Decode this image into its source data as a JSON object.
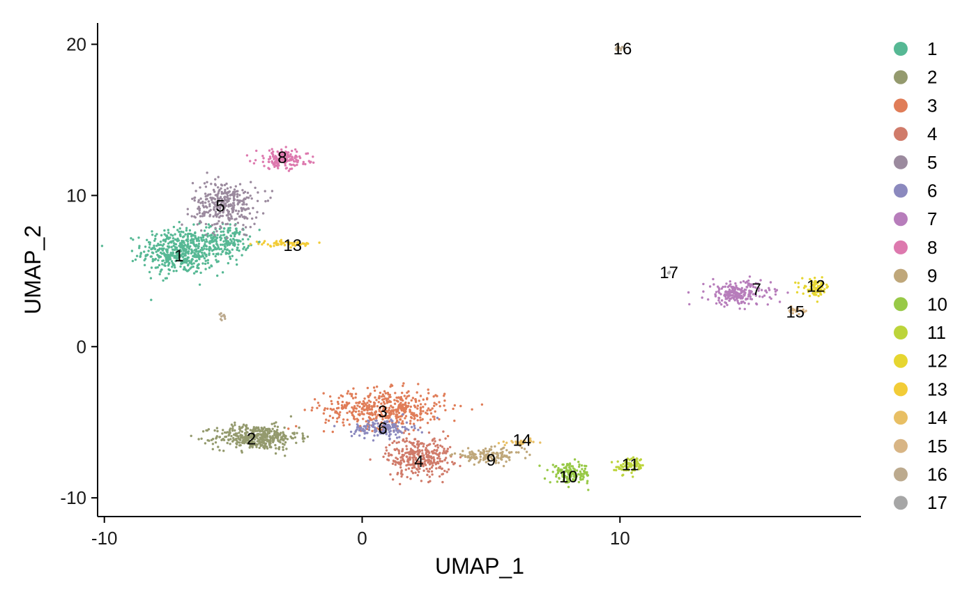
{
  "chart_data": {
    "type": "scatter",
    "title": "",
    "xlabel": "UMAP_1",
    "ylabel": "UMAP_2",
    "xlim": [
      -10.1,
      19.7
    ],
    "ylim": [
      -11.1,
      21.5
    ],
    "x_ticks": [
      -10,
      0,
      10
    ],
    "y_ticks": [
      -10,
      0,
      10,
      20
    ],
    "x_tick_labels": [
      "-10",
      "0",
      "10"
    ],
    "y_tick_labels": [
      "-10",
      "0",
      "10",
      "20"
    ],
    "grid": false,
    "legend_position": "right",
    "legend_entries": [
      "1",
      "2",
      "3",
      "4",
      "5",
      "6",
      "7",
      "8",
      "9",
      "10",
      "11",
      "12",
      "13",
      "14",
      "15",
      "16",
      "17"
    ],
    "series": [
      {
        "name": "1",
        "color": "#56B894",
        "label_pos": [
          -7.1,
          6.0
        ],
        "regions": [
          {
            "cx": -7.0,
            "cy": 6.3,
            "rx": 1.7,
            "ry": 1.7,
            "n": 500
          },
          {
            "cx": -5.2,
            "cy": 7.0,
            "rx": 0.9,
            "ry": 1.2,
            "n": 150
          }
        ]
      },
      {
        "name": "2",
        "color": "#949A6E",
        "label_pos": [
          -4.3,
          -6.1
        ],
        "regions": [
          {
            "cx": -4.1,
            "cy": -6.0,
            "rx": 1.8,
            "ry": 0.9,
            "n": 420
          }
        ]
      },
      {
        "name": "3",
        "color": "#E07D58",
        "label_pos": [
          0.8,
          -4.3
        ],
        "regions": [
          {
            "cx": 0.9,
            "cy": -4.1,
            "rx": 2.6,
            "ry": 1.4,
            "n": 480
          }
        ]
      },
      {
        "name": "4",
        "color": "#D07B6A",
        "label_pos": [
          2.2,
          -7.6
        ],
        "regions": [
          {
            "cx": 2.2,
            "cy": -7.3,
            "rx": 1.4,
            "ry": 1.5,
            "n": 320
          }
        ]
      },
      {
        "name": "5",
        "color": "#9B8A9E",
        "label_pos": [
          -5.5,
          9.3
        ],
        "regions": [
          {
            "cx": -5.3,
            "cy": 9.4,
            "rx": 1.4,
            "ry": 1.7,
            "n": 320
          }
        ]
      },
      {
        "name": "6",
        "color": "#8B89BE",
        "label_pos": [
          0.8,
          -5.4
        ],
        "regions": [
          {
            "cx": 0.8,
            "cy": -5.4,
            "rx": 1.3,
            "ry": 0.7,
            "n": 140
          }
        ]
      },
      {
        "name": "7",
        "color": "#B77DBB",
        "label_pos": [
          15.3,
          3.8
        ],
        "regions": [
          {
            "cx": 14.6,
            "cy": 3.5,
            "rx": 1.4,
            "ry": 0.9,
            "n": 220
          }
        ]
      },
      {
        "name": "8",
        "color": "#DD79AE",
        "label_pos": [
          -3.1,
          12.5
        ],
        "regions": [
          {
            "cx": -3.1,
            "cy": 12.4,
            "rx": 1.1,
            "ry": 0.7,
            "n": 160
          }
        ]
      },
      {
        "name": "9",
        "color": "#BFA77A",
        "label_pos": [
          5.0,
          -7.5
        ],
        "regions": [
          {
            "cx": 4.9,
            "cy": -7.2,
            "rx": 1.5,
            "ry": 0.5,
            "n": 140
          }
        ]
      },
      {
        "name": "10",
        "color": "#98C947",
        "label_pos": [
          8.0,
          -8.6
        ],
        "regions": [
          {
            "cx": 8.1,
            "cy": -8.4,
            "rx": 0.9,
            "ry": 0.7,
            "n": 140
          }
        ]
      },
      {
        "name": "11",
        "color": "#BCD43A",
        "label_pos": [
          10.4,
          -7.8
        ],
        "regions": [
          {
            "cx": 10.4,
            "cy": -7.9,
            "rx": 0.6,
            "ry": 0.6,
            "n": 80
          }
        ]
      },
      {
        "name": "12",
        "color": "#E6D630",
        "label_pos": [
          17.6,
          4.0
        ],
        "regions": [
          {
            "cx": 17.6,
            "cy": 3.9,
            "rx": 0.6,
            "ry": 0.6,
            "n": 80
          }
        ]
      },
      {
        "name": "13",
        "color": "#F2CC37",
        "label_pos": [
          -2.7,
          6.7
        ],
        "regions": [
          {
            "cx": -3.0,
            "cy": 6.8,
            "rx": 1.3,
            "ry": 0.2,
            "n": 60
          }
        ]
      },
      {
        "name": "14",
        "color": "#E8BF64",
        "label_pos": [
          6.2,
          -6.2
        ],
        "regions": [
          {
            "cx": 6.2,
            "cy": -6.3,
            "rx": 0.6,
            "ry": 0.2,
            "n": 30
          }
        ]
      },
      {
        "name": "15",
        "color": "#D8B585",
        "label_pos": [
          16.8,
          2.3
        ],
        "regions": [
          {
            "cx": 16.8,
            "cy": 2.4,
            "rx": 0.4,
            "ry": 0.2,
            "n": 25
          }
        ]
      },
      {
        "name": "16",
        "color": "#BCAA8E",
        "label_pos": [
          10.1,
          19.7
        ],
        "regions": [
          {
            "cx": 10.0,
            "cy": 19.7,
            "rx": 0.2,
            "ry": 0.2,
            "n": 12
          },
          {
            "cx": -5.4,
            "cy": 2.0,
            "rx": 0.12,
            "ry": 0.25,
            "n": 10
          }
        ]
      },
      {
        "name": "17",
        "color": "#A6A6A6",
        "label_pos": [
          11.9,
          4.9
        ],
        "regions": [
          {
            "cx": 11.9,
            "cy": 4.9,
            "rx": 0.1,
            "ry": 0.1,
            "n": 4
          }
        ]
      }
    ]
  }
}
